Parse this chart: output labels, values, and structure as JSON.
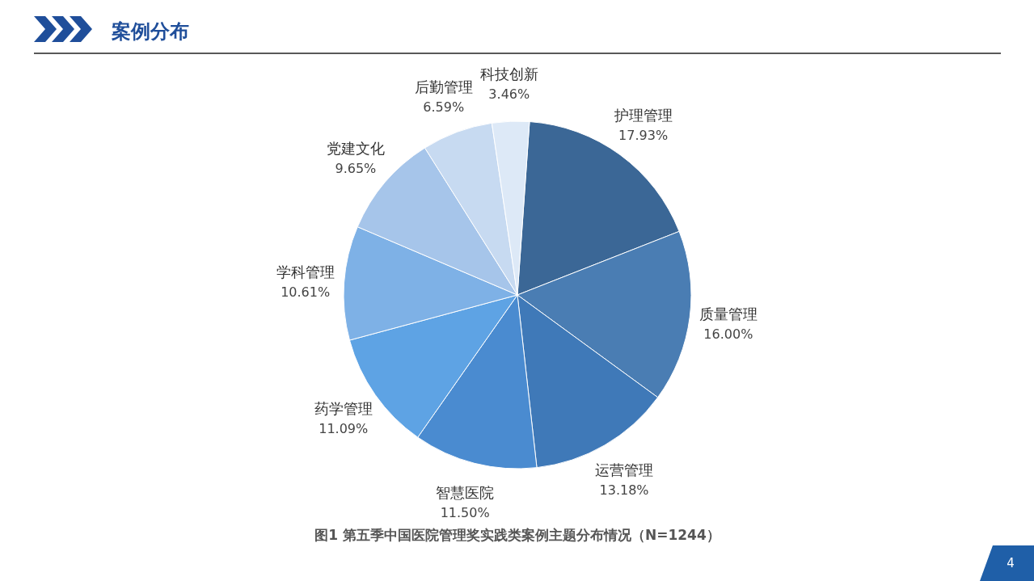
{
  "chart_data": {
    "type": "pie",
    "title": "案例分布",
    "subtitle": "图1 第五季中国医院管理奖实践类案例主题分布情况（N=1244）",
    "categories": [
      "护理管理",
      "质量管理",
      "运营管理",
      "智慧医院",
      "药学管理",
      "学科管理",
      "党建文化",
      "后勤管理",
      "科技创新"
    ],
    "values": [
      17.93,
      16.0,
      13.18,
      11.5,
      11.09,
      10.61,
      9.65,
      6.59,
      3.46
    ],
    "value_labels": [
      "17.93%",
      "16.00%",
      "13.18%",
      "11.50%",
      "11.09%",
      "10.61%",
      "9.65%",
      "6.59%",
      "3.46%"
    ],
    "colors": [
      "#3b6796",
      "#4a7db3",
      "#3f79b8",
      "#4a8bd0",
      "#5ea3e4",
      "#7eb1e6",
      "#a6c5ea",
      "#c7daf1",
      "#dde9f7"
    ],
    "annotations": [
      "4"
    ]
  }
}
